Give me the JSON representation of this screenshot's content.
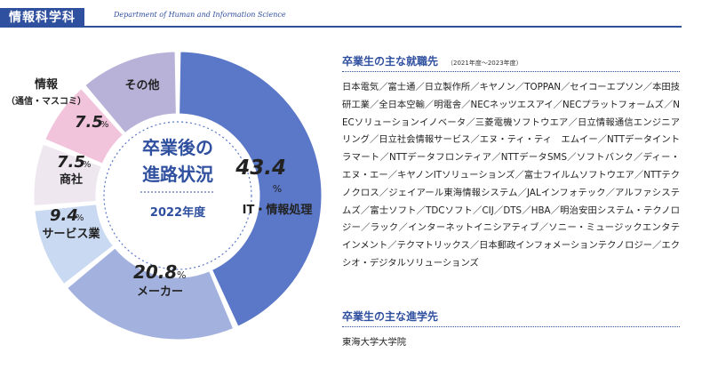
{
  "header": {
    "dept_jp": "情報科学科",
    "dept_en": "Department of Human and Information Science"
  },
  "chart_data": {
    "type": "pie",
    "center_title_line1": "卒業後の",
    "center_title_line2": "進路状況",
    "center_year": "2022年度",
    "unit": "%",
    "slices": [
      {
        "label": "IT・情報処理",
        "value": 43.4,
        "color": "#5b77c7"
      },
      {
        "label": "メーカー",
        "value": 20.8,
        "color": "#a3b1df"
      },
      {
        "label": "サービス業",
        "value": 9.4,
        "color": "#c9d9f1"
      },
      {
        "label": "商社",
        "value": 7.5,
        "color": "#eee7f0"
      },
      {
        "label_line1": "情報",
        "label_line2": "（通信・マスコミ）",
        "value": 7.5,
        "color": "#f2c4dc"
      },
      {
        "label": "その他",
        "value": 11.4,
        "color": "#b8b1d8",
        "value_hidden": true
      }
    ]
  },
  "jobs": {
    "title": "卒業生の主な就職先",
    "note": "（2021年度〜2023年度）",
    "body": "日本電気／富士通／日立製作所／キヤノン／TOPPAN／セイコーエプソン／本田技研工業／全日本空輸／明電舎／NECネッツエスアイ／NECプラットフォームズ／NECソリューションイノベータ／三菱電機ソフトウエア／日立情報通信エンジニアリング／日立社会情報サービス／エヌ・ティ・ティ　エムイー／NTTデータイントラマート／NTTデータフロンティア／NTTデータSMS／ソフトバンク／ディー・エヌ・エー／キヤノンITソリューションズ／富士フイルムソフトウエア／NTTテクノクロス／ジェイアール東海情報システム／JALインフォテック／アルファシステムズ／富士ソフト／TDCソフト／CIJ／DTS／HBA／明治安田システム・テクノロジー／ラック／インターネットイニシアティブ／ソニー・ミュージックエンタテインメント／テクマトリックス／日本郵政インフォメーションテクノロジー／エクシオ・デジタルソリューションズ"
  },
  "grad": {
    "title": "卒業生の主な進学先",
    "body": "東海大学大学院"
  }
}
